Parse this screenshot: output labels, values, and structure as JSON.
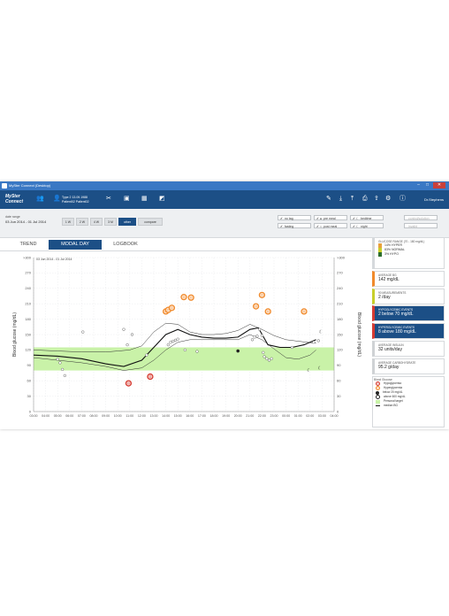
{
  "window": {
    "title": "MySter Connect (Desktop)",
    "min": "–",
    "max": "□",
    "close": "✕"
  },
  "toolbar": {
    "logo_line1": "MySter",
    "logo_line2": "Connect",
    "patient_line1": "Type 2  13.09.1988",
    "patient_line2": "Patient02 Patient02",
    "user": "Dr.Stephens"
  },
  "date_range": {
    "label": "date range",
    "value": "03 Jun 2014 - 01 Jul 2014"
  },
  "periods": [
    {
      "label": "1 W",
      "active": false
    },
    {
      "label": "2 W",
      "active": false
    },
    {
      "label": "4 W",
      "active": false
    },
    {
      "label": "3 M",
      "active": false
    },
    {
      "label": "other",
      "active": true
    },
    {
      "label": "compare",
      "active": false
    }
  ],
  "filters": [
    {
      "label": "no tag",
      "mark": "✔",
      "dim": false
    },
    {
      "label": "fasting",
      "mark": "✔",
      "dim": false
    },
    {
      "label": "pre meal",
      "mark": "✔ ●",
      "dim": false
    },
    {
      "label": "post meal",
      "mark": "✔ ○",
      "dim": false
    },
    {
      "label": "bedtime",
      "mark": "✔ ☾",
      "dim": false
    },
    {
      "label": "night",
      "mark": "✔ ☾",
      "dim": false
    },
    {
      "label": "control/solution",
      "mark": "",
      "dim": true
    },
    {
      "label": "invalid",
      "mark": "",
      "dim": true
    }
  ],
  "tabs": [
    {
      "label": "TREND",
      "active": false
    },
    {
      "label": "MODAL DAY",
      "active": true
    },
    {
      "label": "LOGBOOK",
      "active": false
    }
  ],
  "chart_data": {
    "type": "scatter",
    "title": "",
    "period_label": "03 Jun 2014 - 01 Jul 2014",
    "ylabel_left": "Blood glucose (mg/dL)",
    "ylabel_right": "Blood glucose (mg/dL)",
    "ylim": [
      0,
      300
    ],
    "y_ticks": [
      "0",
      "30",
      "60",
      "90",
      "120",
      "150",
      "180",
      "210",
      "240",
      "270",
      ">300"
    ],
    "x_ticks": [
      "03:00",
      "04:00",
      "05:00",
      "06:00",
      "07:00",
      "08:00",
      "09:00",
      "10:00",
      "11:00",
      "12:00",
      "13:00",
      "14:00",
      "15:00",
      "16:00",
      "17:00",
      "18:00",
      "19:00",
      "20:00",
      "21:00",
      "22:00",
      "23:00",
      "00:00",
      "01:00",
      "02:00",
      "03:00",
      "04:00"
    ],
    "target_range": [
      80,
      125
    ],
    "median": [
      [
        3,
        110
      ],
      [
        5,
        108
      ],
      [
        7,
        103
      ],
      [
        9,
        93
      ],
      [
        10.5,
        88
      ],
      [
        12,
        100
      ],
      [
        13,
        125
      ],
      [
        14,
        150
      ],
      [
        15,
        160
      ],
      [
        16,
        150
      ],
      [
        17,
        145
      ],
      [
        18,
        143
      ],
      [
        19,
        143
      ],
      [
        20,
        145
      ],
      [
        21,
        160
      ],
      [
        21.7,
        163
      ],
      [
        22.5,
        130
      ],
      [
        23.5,
        125
      ],
      [
        24.5,
        125
      ],
      [
        25.5,
        130
      ],
      [
        26.5,
        140
      ]
    ],
    "upper_curve": [
      [
        3,
        120
      ],
      [
        5,
        118
      ],
      [
        7,
        116
      ],
      [
        9,
        116
      ],
      [
        10,
        118
      ],
      [
        11,
        120
      ],
      [
        12,
        128
      ],
      [
        13,
        155
      ],
      [
        14,
        172
      ],
      [
        15,
        170
      ],
      [
        16,
        155
      ],
      [
        17,
        150
      ],
      [
        18,
        150
      ],
      [
        19,
        152
      ],
      [
        20,
        158
      ],
      [
        21,
        170
      ],
      [
        22,
        160
      ],
      [
        23,
        148
      ],
      [
        24,
        140
      ],
      [
        25,
        137
      ],
      [
        26.5,
        133
      ]
    ],
    "lower_curve": [
      [
        3,
        105
      ],
      [
        5,
        100
      ],
      [
        7,
        95
      ],
      [
        9,
        88
      ],
      [
        10.5,
        80
      ],
      [
        12,
        85
      ],
      [
        13,
        100
      ],
      [
        14,
        120
      ],
      [
        15,
        135
      ],
      [
        16,
        140
      ],
      [
        17,
        140
      ],
      [
        18,
        140
      ],
      [
        19,
        140
      ],
      [
        20,
        140
      ],
      [
        21,
        150
      ],
      [
        22,
        140
      ],
      [
        23,
        122
      ],
      [
        24,
        105
      ],
      [
        25,
        102
      ],
      [
        26,
        110
      ],
      [
        26.5,
        120
      ]
    ],
    "points_normal": [
      [
        5,
        102
      ],
      [
        5.2,
        95
      ],
      [
        5.4,
        82
      ],
      [
        5.6,
        70
      ],
      [
        7.1,
        155
      ],
      [
        10.5,
        160
      ],
      [
        10.8,
        130
      ],
      [
        11.2,
        150
      ],
      [
        12.4,
        110
      ],
      [
        14.2,
        130
      ],
      [
        14.4,
        135
      ],
      [
        14.6,
        137
      ],
      [
        14.8,
        139
      ],
      [
        15.0,
        141
      ],
      [
        15.6,
        120
      ],
      [
        16.6,
        117
      ],
      [
        21.2,
        140
      ],
      [
        21.4,
        145
      ],
      [
        21.6,
        147
      ],
      [
        21.8,
        160
      ],
      [
        22.0,
        148
      ],
      [
        22.2,
        107
      ],
      [
        22.4,
        103
      ],
      [
        22.6,
        100
      ],
      [
        22.8,
        103
      ],
      [
        22.1,
        115
      ],
      [
        24.5,
        125
      ],
      [
        26.3,
        135
      ],
      [
        26.7,
        138
      ]
    ],
    "points_hyper": [
      [
        14.0,
        195
      ],
      [
        14.2,
        198
      ],
      [
        14.5,
        202
      ],
      [
        15.5,
        223
      ],
      [
        16.1,
        222
      ],
      [
        21.5,
        205
      ],
      [
        22.0,
        227
      ],
      [
        22.5,
        195
      ],
      [
        25.5,
        195
      ]
    ],
    "points_hypo": [
      [
        10.9,
        55
      ],
      [
        12.7,
        68
      ]
    ],
    "points_below20": [
      [
        20.0,
        118
      ]
    ],
    "points_night": [
      [
        26.9,
        155
      ],
      [
        25.9,
        80
      ],
      [
        26.8,
        85
      ]
    ]
  },
  "panel": {
    "range_title": "GLUCOSE RANGE (70 - 180 mg/dL)",
    "range_rows": [
      {
        "label": "14% HYPER",
        "color": "#e8a13a"
      },
      {
        "label": "83% NORMAL",
        "color": "#c8cf2a"
      },
      {
        "label": "3% HYPO",
        "color": "#2d6e2d"
      }
    ],
    "cards": [
      {
        "title": "AVERAGE BG",
        "value": "142 mg/dL",
        "color": "#f08a2c",
        "dark": false
      },
      {
        "title": "90 MEASUREMENTS",
        "value": "2 /day",
        "color": "#c8cf2a",
        "dark": false
      },
      {
        "title": "HYPOGLYCEMIC EVENTS",
        "value": "2 below 70 mg/dL",
        "color": "#d63b32",
        "dark": true
      },
      {
        "title": "HYPERGLYCEMIC EVENTS",
        "value": "8 above 180 mg/dL",
        "color": "#d63b32",
        "dark": true
      },
      {
        "title": "AVERAGE INSULIN",
        "value": "32 units/day",
        "color": "#cfd2d5",
        "dark": false
      },
      {
        "title": "AVERAGE CARBOHYDRATE",
        "value": "95.2 g/day",
        "color": "#cfd2d5",
        "dark": false
      }
    ],
    "legend_title": "Blood Glucose",
    "legend": [
      "Hypoglycemia",
      "Hyperglycemia",
      "below 20 mg/dL",
      "above 600 mg/dL",
      "Personal target",
      "median BG"
    ]
  },
  "colors": {
    "accent": "#1c4f86",
    "target": "#c9f2a8",
    "hypo": "#d63b32",
    "hyper": "#f08a2c"
  }
}
